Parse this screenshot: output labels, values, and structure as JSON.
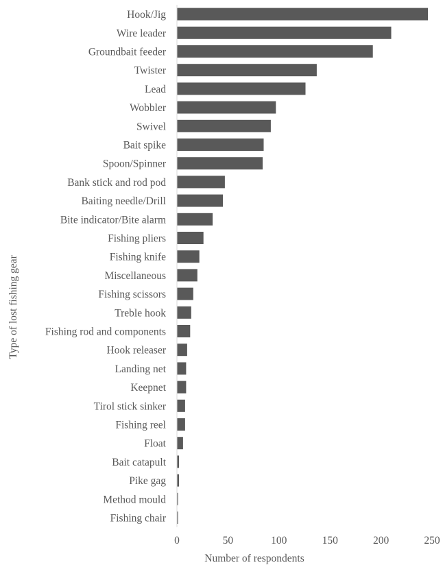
{
  "chart_data": {
    "type": "bar",
    "orientation": "horizontal",
    "title": "",
    "xlabel": "Number of respondents",
    "ylabel": "Type of lost fishing gear",
    "xlim": [
      0,
      250
    ],
    "x_ticks": [
      0,
      50,
      100,
      150,
      200,
      250
    ],
    "grid": false,
    "legend": "none",
    "bar_color": "#595959",
    "categories": [
      "Hook/Jig",
      "Wire leader",
      "Groundbait feeder",
      "Twister",
      "Lead",
      "Wobbler",
      "Swivel",
      "Bait spike",
      "Spoon/Spinner",
      "Bank stick and rod pod",
      "Baiting needle/Drill",
      "Bite indicator/Bite alarm",
      "Fishing pliers",
      "Fishing knife",
      "Miscellaneous",
      "Fishing scissors",
      "Treble hook",
      "Fishing rod and components",
      "Hook releaser",
      "Landing net",
      "Keepnet",
      "Tirol stick sinker",
      "Fishing reel",
      "Float",
      "Bait catapult",
      "Pike gag",
      "Method mould",
      "Fishing chair"
    ],
    "values": [
      246,
      210,
      192,
      137,
      126,
      97,
      92,
      85,
      84,
      47,
      45,
      35,
      26,
      22,
      20,
      16,
      14,
      13,
      10,
      9,
      9,
      8,
      8,
      6,
      2,
      2,
      1,
      1
    ]
  }
}
